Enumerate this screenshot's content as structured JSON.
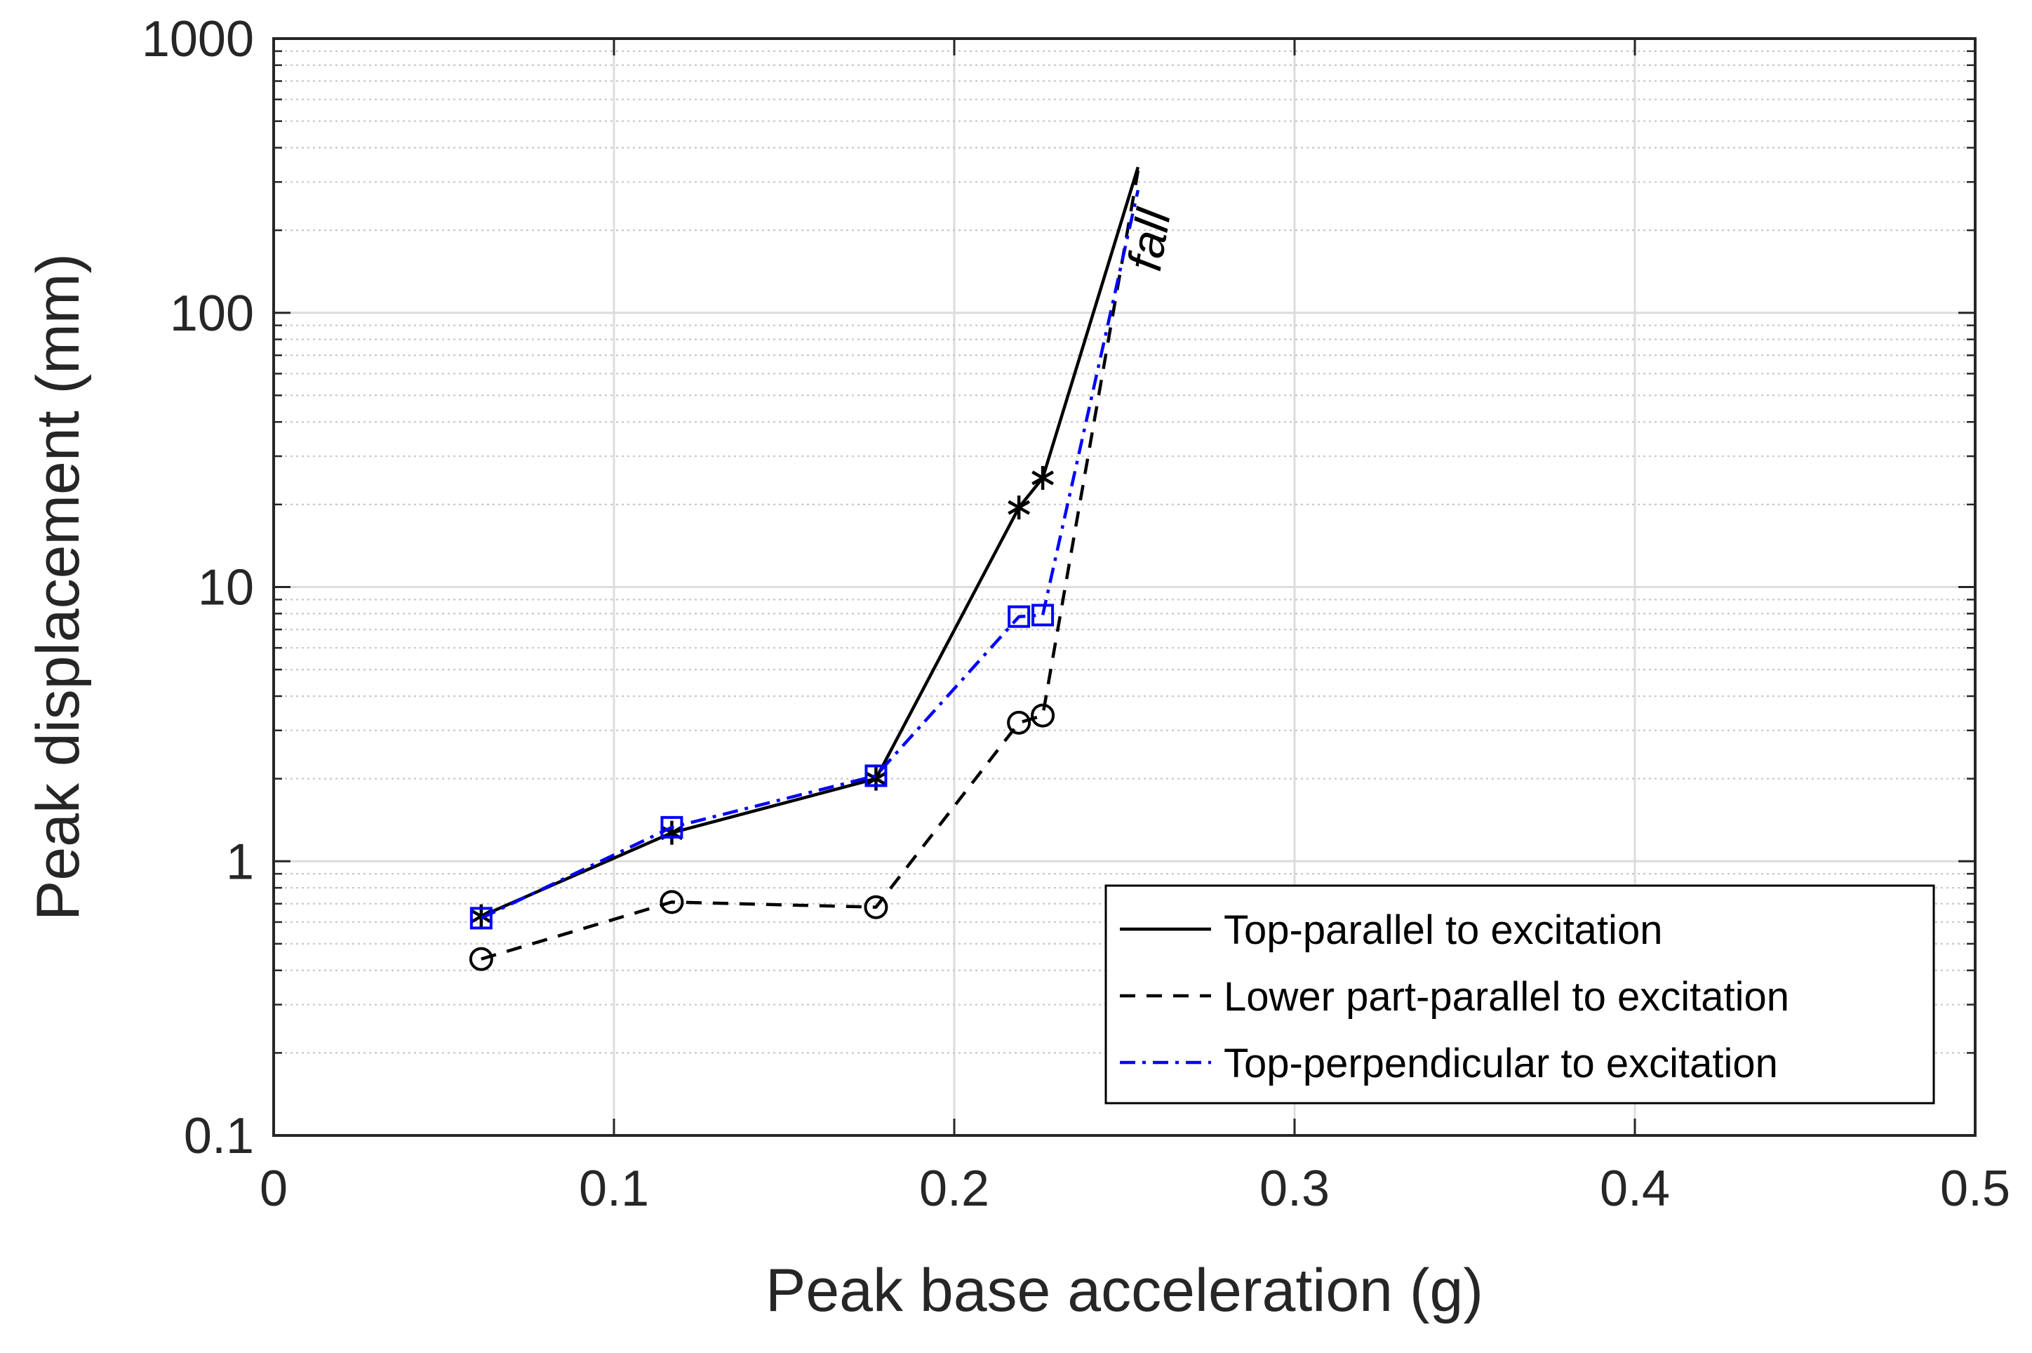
{
  "chart_data": {
    "type": "line",
    "title": "",
    "xlabel": "Peak base acceleration (g)",
    "ylabel": "Peak displacement (mm)",
    "xlim": [
      0,
      0.5
    ],
    "ylim": [
      0.1,
      1000
    ],
    "yscale": "log",
    "grid": true,
    "x_ticks": [
      0,
      0.1,
      0.2,
      0.3,
      0.4,
      0.5
    ],
    "x_tick_labels": [
      "0",
      "0.1",
      "0.2",
      "0.3",
      "0.4",
      "0.5"
    ],
    "y_ticks": [
      0.1,
      1,
      10,
      100,
      1000
    ],
    "y_tick_labels": [
      "0.1",
      "1",
      "10",
      "100",
      "1000"
    ],
    "legend_position": "bottom-right",
    "series": [
      {
        "name": "Top-parallel to excitation",
        "color": "#000000",
        "line": "solid",
        "marker": "asterisk",
        "x": [
          0.061,
          0.117,
          0.177,
          0.219,
          0.226,
          0.254
        ],
        "y": [
          0.63,
          1.27,
          2.0,
          19.5,
          25.0,
          340
        ],
        "marker_count": 5
      },
      {
        "name": "Lower part-parallel to excitation",
        "color": "#000000",
        "line": "dashed",
        "marker": "circle",
        "x": [
          0.061,
          0.117,
          0.177,
          0.219,
          0.226,
          0.254
        ],
        "y": [
          0.44,
          0.71,
          0.68,
          3.2,
          3.4,
          330
        ],
        "marker_count": 5
      },
      {
        "name": "Top-perpendicular to excitation",
        "color": "#0000ff",
        "line": "dashdot",
        "marker": "square",
        "x": [
          0.061,
          0.117,
          0.177,
          0.219,
          0.226,
          0.254
        ],
        "y": [
          0.62,
          1.33,
          2.05,
          7.8,
          7.9,
          280
        ],
        "marker_count": 5
      }
    ],
    "annotations": [
      {
        "text": "fall",
        "x": 0.262,
        "y": 180,
        "rotation_deg": -80
      }
    ]
  }
}
